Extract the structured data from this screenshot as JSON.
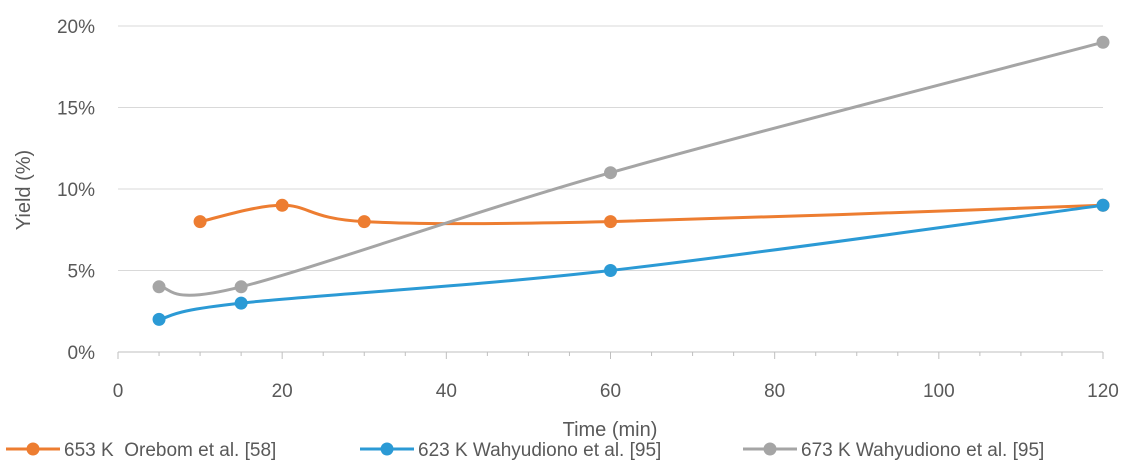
{
  "chart_data": {
    "type": "line",
    "title": "",
    "xlabel": "Time (min)",
    "ylabel": "Yield (%)",
    "xlim": [
      0,
      120
    ],
    "ylim": [
      0,
      20
    ],
    "x_ticks": [
      "0",
      "20",
      "40",
      "60",
      "80",
      "100",
      "120"
    ],
    "y_ticks": [
      "0%",
      "5%",
      "10%",
      "15%",
      "20%"
    ],
    "grid": "horizontal",
    "smooth": true,
    "legend_position": "bottom",
    "series": [
      {
        "name": "653 K  Orebom et al. [58]",
        "color": "#ED7D31",
        "points": [
          [
            10,
            8
          ],
          [
            20,
            9
          ],
          [
            30,
            8
          ],
          [
            60,
            8
          ],
          [
            120,
            9
          ]
        ]
      },
      {
        "name": "623 K Wahyudiono et al. [95]",
        "color": "#2B9AD5",
        "points": [
          [
            5,
            2
          ],
          [
            15,
            3
          ],
          [
            60,
            5
          ],
          [
            120,
            9
          ]
        ]
      },
      {
        "name": "673 K Wahyudiono et al. [95]",
        "color": "#A5A5A5",
        "points": [
          [
            5,
            4
          ],
          [
            15,
            4
          ],
          [
            60,
            11
          ],
          [
            120,
            19
          ]
        ]
      }
    ]
  }
}
